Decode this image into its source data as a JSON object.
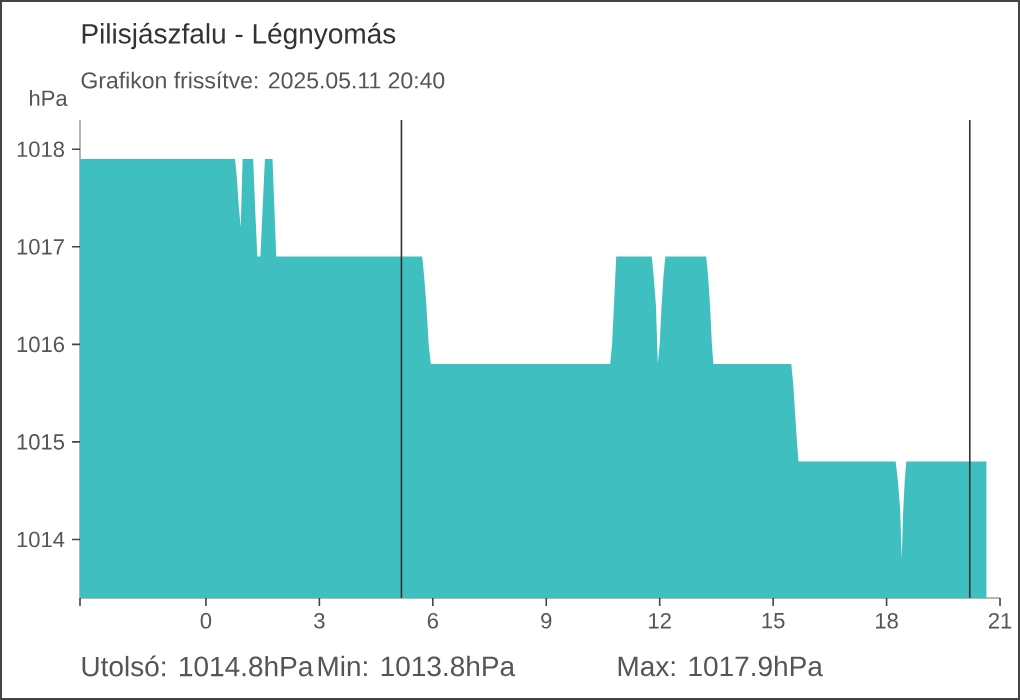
{
  "chart_data": {
    "type": "area",
    "title": "Pilisjászfalu - Légnyomás",
    "subtitle": "Grafikon frissítve: 2025.05.11 20:40",
    "ylabel": "hPa",
    "annotations": [
      "Utolsó: 1014.8hPa",
      "Min: 1013.8hPa",
      "Max: 1017.9hPa"
    ],
    "xlim": [
      -3.33,
      21
    ],
    "xticks": [
      {
        "value": -3.33,
        "label": null
      },
      0,
      3,
      6,
      9,
      12,
      15,
      18,
      21
    ],
    "ylim": [
      1013.4,
      1018.3
    ],
    "yticks": [
      1014,
      1015,
      1016,
      1017,
      1018
    ],
    "ref_lines": [
      {
        "axis": "x",
        "value": 5.17,
        "color": "#333333"
      },
      {
        "axis": "x",
        "value": 20.2,
        "color": "#333333"
      }
    ],
    "series": [
      {
        "color": "#40bfc1",
        "x": [
          -3.33,
          0.77,
          0.82,
          0.87,
          0.92,
          0.97,
          1.25,
          1.3,
          1.36,
          1.44,
          1.5,
          1.56,
          1.76,
          1.81,
          1.86,
          5.72,
          5.77,
          5.83,
          5.89,
          5.95,
          10.69,
          10.74,
          10.79,
          10.85,
          11.79,
          11.84,
          11.9,
          11.95,
          12.0,
          12.05,
          12.1,
          12.15,
          13.23,
          13.28,
          13.33,
          13.38,
          13.42,
          15.48,
          15.53,
          15.58,
          15.63,
          15.67,
          18.24,
          18.3,
          18.36,
          18.4,
          18.44,
          18.48,
          18.52,
          20.64
        ],
        "values": [
          1017.9,
          1017.9,
          1017.7,
          1017.4,
          1017.2,
          1017.9,
          1017.9,
          1017.4,
          1016.9,
          1016.9,
          1017.4,
          1017.9,
          1017.9,
          1017.4,
          1016.9,
          1016.9,
          1016.7,
          1016.4,
          1016.0,
          1015.8,
          1015.8,
          1016.0,
          1016.4,
          1016.9,
          1016.9,
          1016.7,
          1016.4,
          1015.8,
          1016.0,
          1016.4,
          1016.7,
          1016.9,
          1016.9,
          1016.7,
          1016.4,
          1016.0,
          1015.8,
          1015.8,
          1015.6,
          1015.3,
          1015.0,
          1014.8,
          1014.8,
          1014.6,
          1014.3,
          1013.8,
          1014.3,
          1014.6,
          1014.8,
          1014.8
        ]
      }
    ]
  }
}
